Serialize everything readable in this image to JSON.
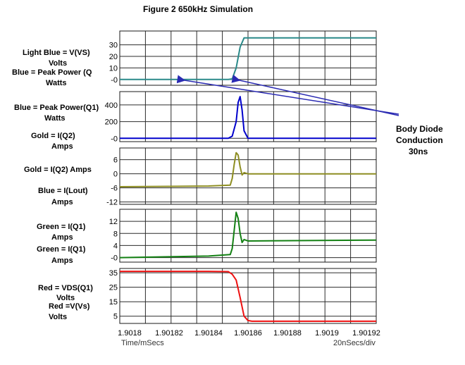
{
  "title": "Figure 2 650kHz Simulation",
  "left_labels": [
    {
      "text": "Light Blue = V(VS)"
    },
    {
      "text": "Volts"
    },
    {
      "text": "Blue = Peak Power (Q"
    },
    {
      "text": "Watts"
    },
    {
      "text": "Blue = Peak Power(Q1)"
    },
    {
      "text": "Watts"
    },
    {
      "text": "Gold = I(Q2)"
    },
    {
      "text": "Amps"
    },
    {
      "text": "Gold = I(Q2) Amps"
    },
    {
      "text": "Blue = I(Lout)"
    },
    {
      "text": "Amps"
    },
    {
      "text": "Green = I(Q1)"
    },
    {
      "text": "Amps"
    },
    {
      "text": "Green = I(Q1)"
    },
    {
      "text": "Amps"
    },
    {
      "text": "Red = VDS(Q1)"
    },
    {
      "text": "Volts"
    },
    {
      "text": "Red =V(Vs)"
    },
    {
      "text": "Volts"
    }
  ],
  "annotation": {
    "line1": "Body Diode",
    "line2": "Conduction",
    "line3": "30ns"
  },
  "footer": {
    "left": "Time/mSecs",
    "right": "20nSecs/div"
  },
  "chart_data": [
    {
      "type": "line",
      "title": "Figure 2 650kHz Simulation",
      "xlim": [
        1.901795,
        1.901925
      ],
      "ylim": [
        -5,
        42
      ],
      "yticks": [
        0,
        10,
        20,
        30
      ],
      "ytick_labels": [
        "-0",
        "10",
        "20",
        "30"
      ],
      "grid": true,
      "series": [
        {
          "name": "V(VS)",
          "color": "#2a8a8a",
          "x": [
            1.901795,
            1.90185,
            1.901852,
            1.901854,
            1.901856,
            1.901858,
            1.90186,
            1.901925
          ],
          "y": [
            0,
            0,
            0.5,
            10,
            28,
            36,
            36,
            36
          ]
        }
      ]
    },
    {
      "type": "line",
      "xlim": [
        1.901795,
        1.901925
      ],
      "ylim": [
        -40,
        560
      ],
      "yticks": [
        0,
        200,
        400
      ],
      "ytick_labels": [
        "-0",
        "200",
        "400"
      ],
      "grid": true,
      "series": [
        {
          "name": "Peak Power(Q1)",
          "color": "#0000cc",
          "x": [
            1.901795,
            1.90185,
            1.901852,
            1.901854,
            1.901855,
            1.901856,
            1.901857,
            1.901858,
            1.90186,
            1.901925
          ],
          "y": [
            0,
            0,
            25,
            200,
            430,
            500,
            340,
            90,
            0,
            0
          ]
        }
      ]
    },
    {
      "type": "line",
      "xlim": [
        1.901795,
        1.901925
      ],
      "ylim": [
        -13,
        11
      ],
      "yticks": [
        -12,
        -6,
        0,
        6
      ],
      "ytick_labels": [
        "-12",
        "-6",
        "0",
        "6"
      ],
      "grid": true,
      "series": [
        {
          "name": "I(Q2)",
          "color": "#8e8e22",
          "x": [
            1.901795,
            1.90184,
            1.901851,
            1.901852,
            1.901853,
            1.901854,
            1.901855,
            1.901856,
            1.901857,
            1.901858,
            1.90186,
            1.901925
          ],
          "y": [
            -5.5,
            -5.2,
            -4.8,
            -2,
            4,
            9,
            8,
            3,
            -0.5,
            0.5,
            0,
            0
          ]
        }
      ]
    },
    {
      "type": "line",
      "xlim": [
        1.901795,
        1.901925
      ],
      "ylim": [
        -1.5,
        16
      ],
      "yticks": [
        0,
        4,
        8,
        12
      ],
      "ytick_labels": [
        "-0",
        "4",
        "8",
        "12"
      ],
      "grid": true,
      "series": [
        {
          "name": "I(Q1)",
          "color": "#138013",
          "x": [
            1.901795,
            1.90184,
            1.901851,
            1.901852,
            1.901853,
            1.901854,
            1.901855,
            1.901856,
            1.901857,
            1.901858,
            1.90186,
            1.901925
          ],
          "y": [
            0,
            0.5,
            1,
            3,
            9,
            15,
            13,
            8,
            5,
            6,
            5.5,
            5.8
          ]
        }
      ]
    },
    {
      "type": "line",
      "xlim": [
        1.901795,
        1.901925
      ],
      "ylim": [
        0,
        38
      ],
      "yticks": [
        5,
        15,
        25,
        35
      ],
      "ytick_labels": [
        "5",
        "15",
        "25",
        "35"
      ],
      "xticks": [
        1.9018,
        1.90182,
        1.90184,
        1.90186,
        1.90188,
        1.9019,
        1.90192
      ],
      "xtick_labels": [
        "1.9018",
        "1.90182",
        "1.90184",
        "1.90186",
        "1.90188",
        "1.9019",
        "1.90192"
      ],
      "xlabel": "Time/mSecs",
      "grid": true,
      "series": [
        {
          "name": "VDS(Q1)",
          "color": "#ee1111",
          "x": [
            1.901795,
            1.90184,
            1.90185,
            1.901852,
            1.901854,
            1.901856,
            1.901858,
            1.90186,
            1.901862,
            1.901925
          ],
          "y": [
            36,
            36,
            35.8,
            34,
            30,
            18,
            5,
            2,
            1.5,
            1.5
          ]
        }
      ]
    }
  ]
}
